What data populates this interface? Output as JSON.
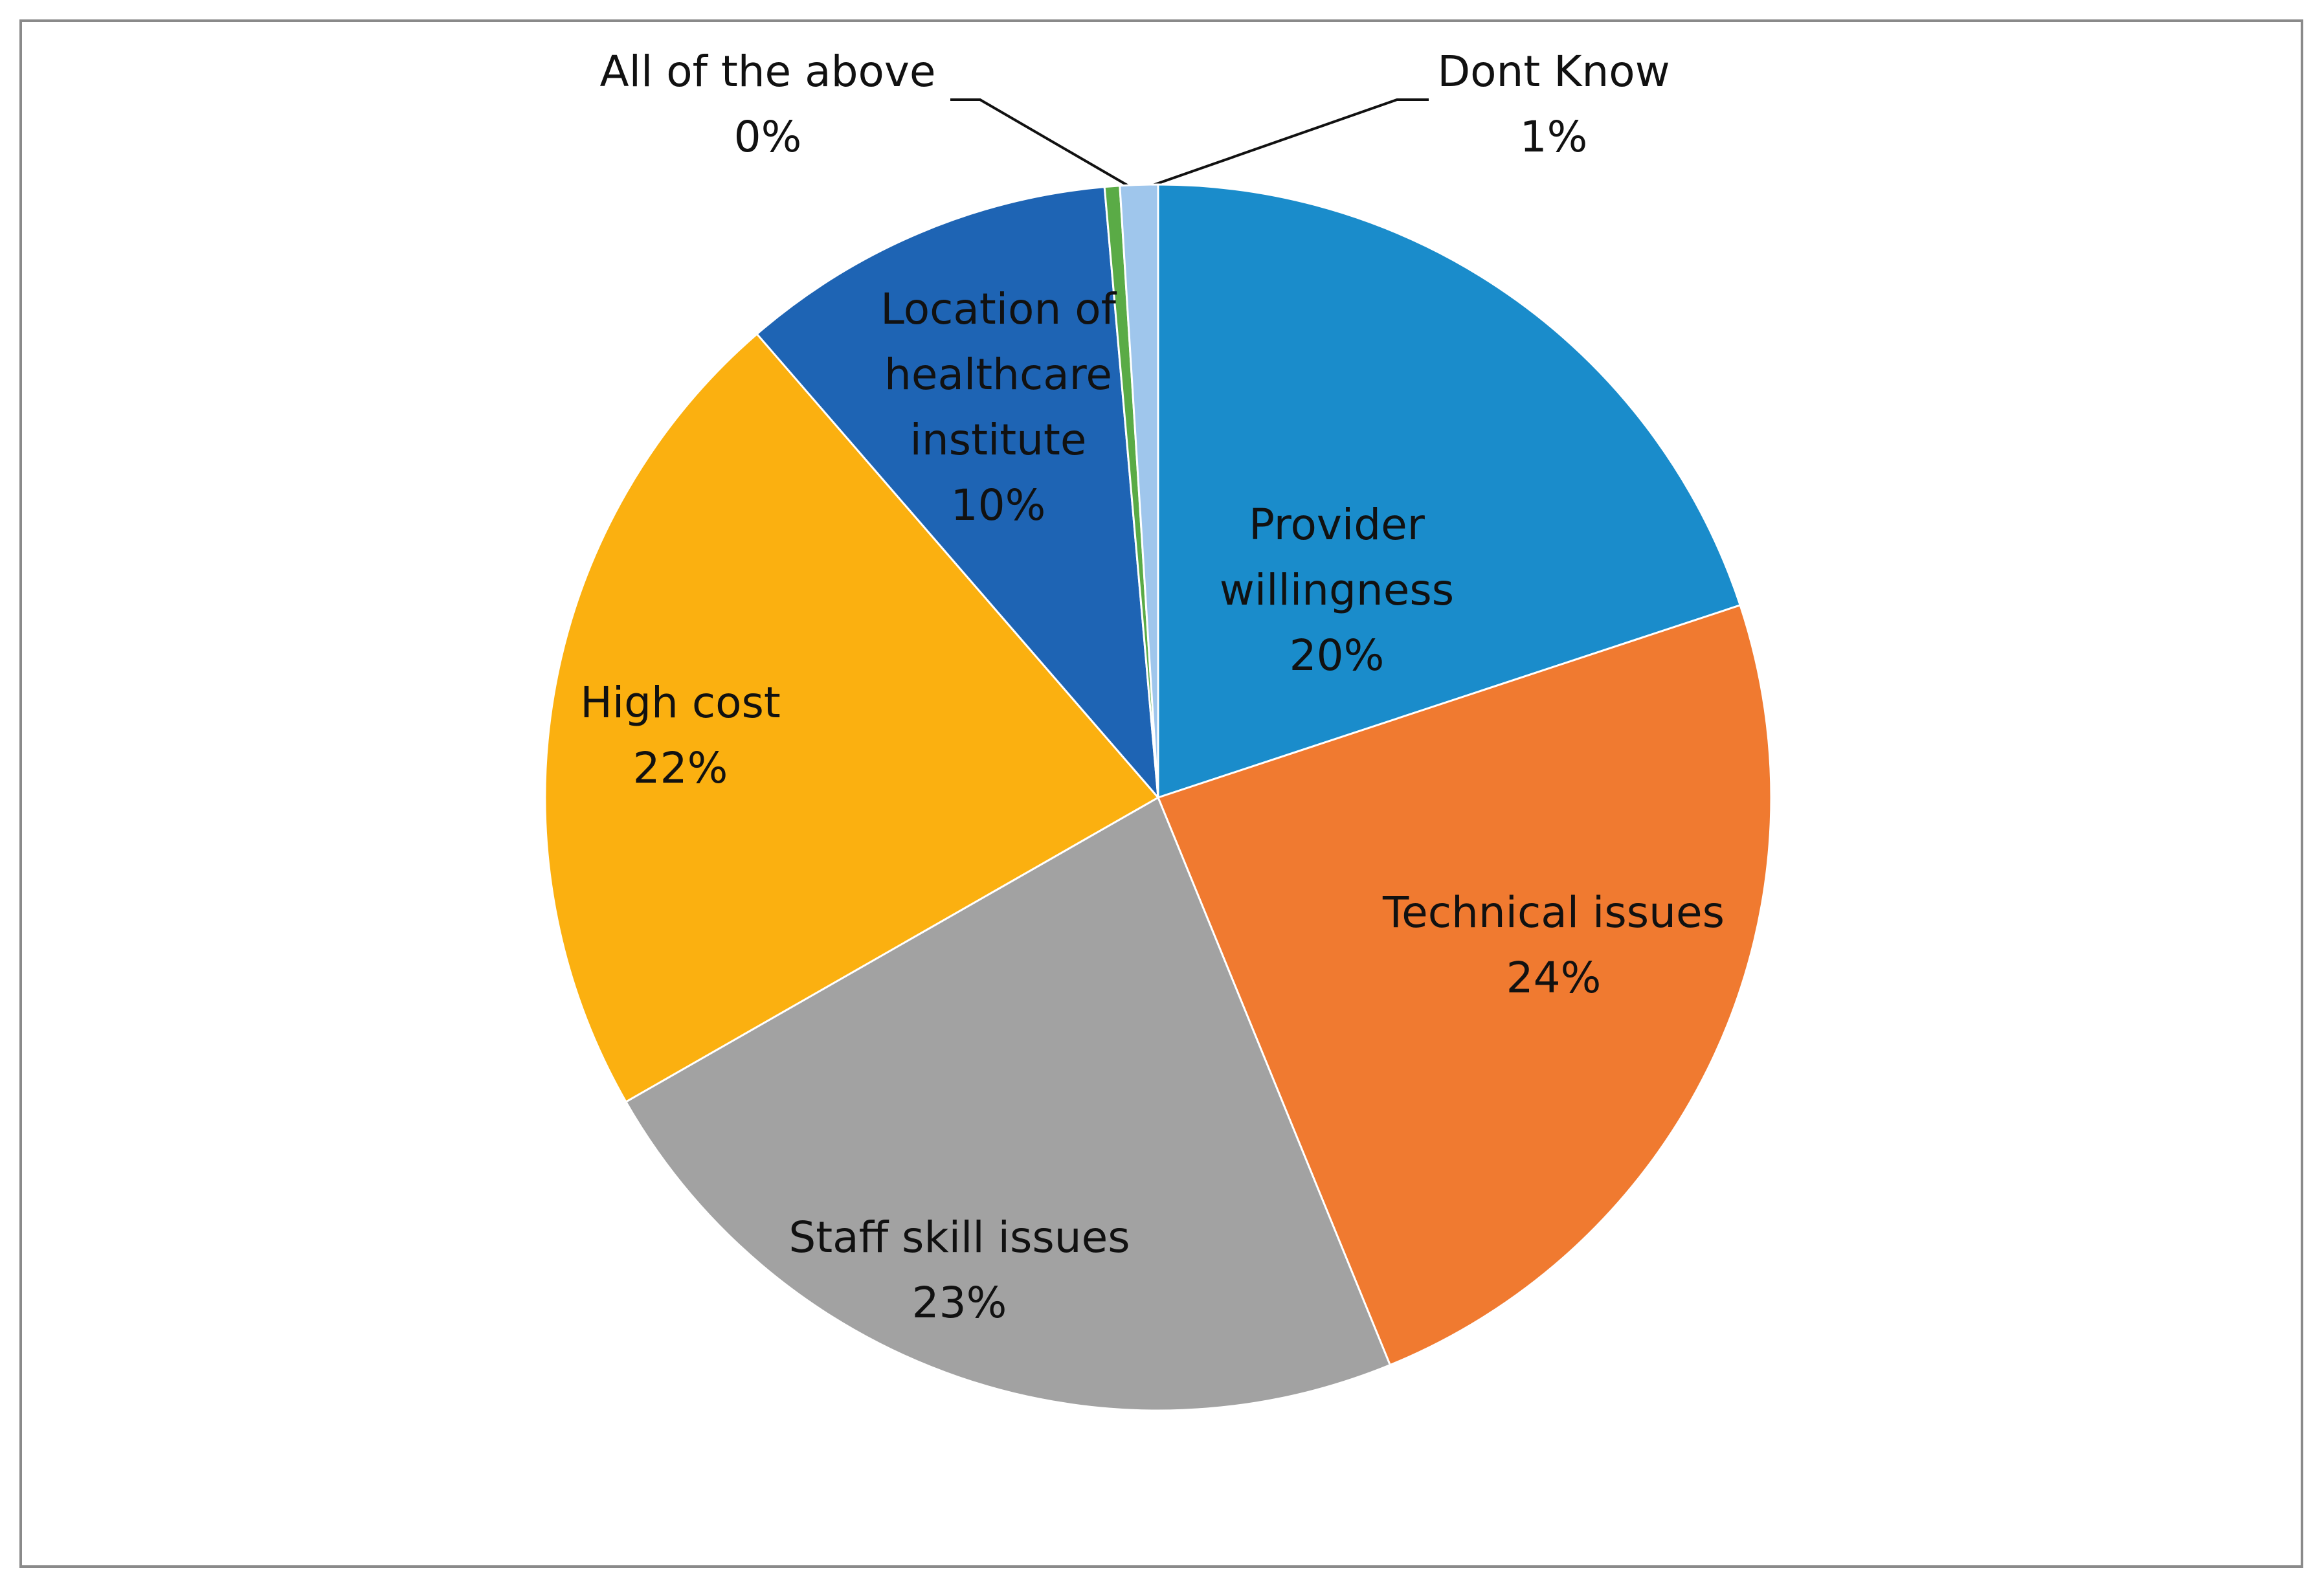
{
  "chart_data": {
    "type": "pie",
    "categories": [
      "Provider willingness",
      "Technical issues",
      "Staff skill issues",
      "High cost",
      "Location of healthcare institute",
      "All of the above",
      "Dont Know"
    ],
    "values": [
      20,
      24,
      23,
      22,
      10,
      0.4,
      1
    ],
    "value_labels": [
      "20%",
      "24%",
      "23%",
      "22%",
      "10%",
      "0%",
      "1%"
    ],
    "colors": [
      "#1a8ccb",
      "#f07a30",
      "#a2a2a2",
      "#fbb010",
      "#1e64b4",
      "#5aab46",
      "#9fc6ec"
    ]
  }
}
